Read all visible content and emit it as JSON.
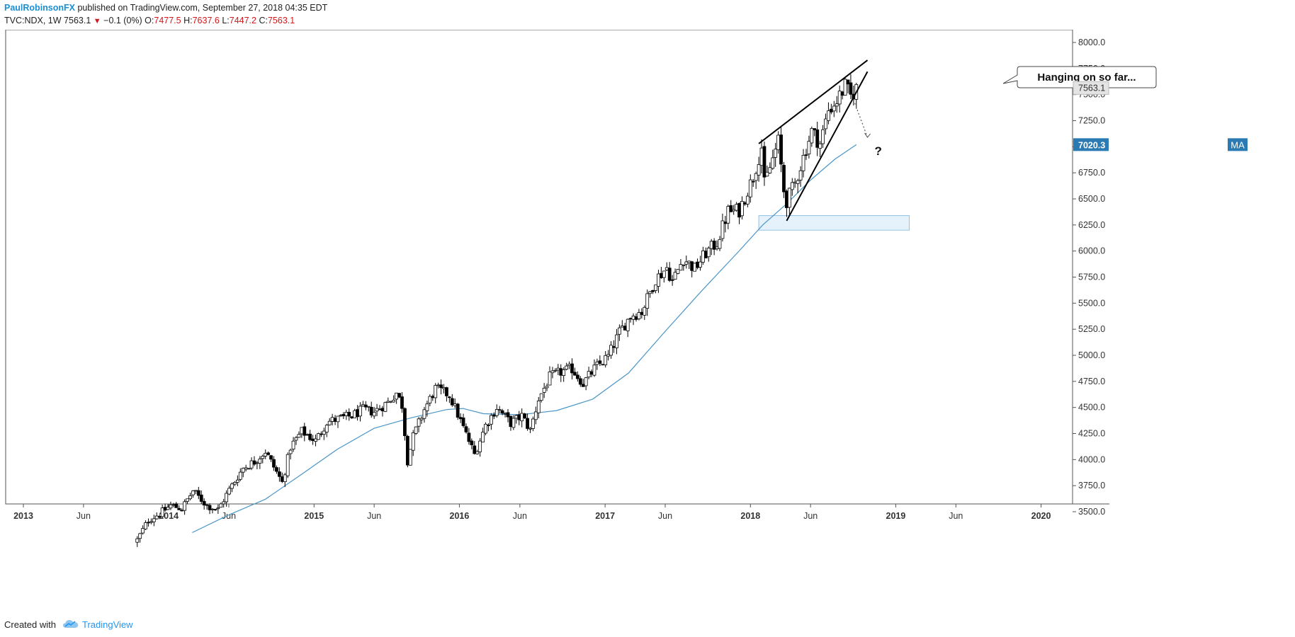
{
  "header": {
    "author": "PaulRobinsonFX",
    "published": "published on TradingView.com, September 27, 2018 04:35 EDT",
    "symbol": "TVC:NDX, 1W",
    "last": "7563.1",
    "change": "−0.1 (0%)",
    "o_label": "O:",
    "o": "7477.5",
    "h_label": "H:",
    "h": "7637.6",
    "l_label": "L:",
    "l": "7447.2",
    "c_label": "C:",
    "c": "7563.1"
  },
  "footer": {
    "created_with": "Created with",
    "brand": "TradingView",
    "logo_icon": "tradingview-cloud-icon"
  },
  "colors": {
    "background": "#ffffff",
    "candle_border": "#000000",
    "bull_fill": "#ffffff",
    "bear_fill": "#000000",
    "ma_line": "#4a96c8",
    "ma_badge": "#2a7ab4",
    "zone_fill": "#e6f2fb",
    "zone_stroke": "#8fc3e6",
    "axis_text": "#333333",
    "price_badge": "#e4e4e4"
  },
  "chart_data": {
    "type": "candlestick",
    "symbol": "TVC:NDX",
    "interval": "1W",
    "x_range": [
      "2013-01-01",
      "2020-06-01"
    ],
    "ylim": [
      3300,
      8100
    ],
    "y_ticks": [
      3500,
      3750,
      4000,
      4250,
      4500,
      4750,
      5000,
      5250,
      5500,
      5750,
      6000,
      6250,
      6500,
      6750,
      7000,
      7250,
      7500,
      7750,
      8000
    ],
    "y_tick_labels": [
      "3500.0",
      "3750.0",
      "4000.0",
      "4250.0",
      "4500.0",
      "4750.0",
      "5000.0",
      "5250.0",
      "5500.0",
      "5750.0",
      "6000.0",
      "6250.0",
      "6500.0",
      "6750.0",
      "7000.0",
      "7250.0",
      "7500.0",
      "7750.0",
      "8000.0"
    ],
    "x_ticks": [
      {
        "date": "2013-01-01",
        "label": "2013",
        "bold": true
      },
      {
        "date": "2013-06-01",
        "label": "Jun",
        "bold": false
      },
      {
        "date": "2014-01-01",
        "label": "2014",
        "bold": true
      },
      {
        "date": "2014-06-01",
        "label": "Jun",
        "bold": false
      },
      {
        "date": "2015-01-01",
        "label": "2015",
        "bold": true
      },
      {
        "date": "2015-06-01",
        "label": "Jun",
        "bold": false
      },
      {
        "date": "2016-01-01",
        "label": "2016",
        "bold": true
      },
      {
        "date": "2016-06-01",
        "label": "Jun",
        "bold": false
      },
      {
        "date": "2017-01-01",
        "label": "2017",
        "bold": true
      },
      {
        "date": "2017-06-01",
        "label": "Jun",
        "bold": false
      },
      {
        "date": "2018-01-01",
        "label": "2018",
        "bold": true
      },
      {
        "date": "2018-06-01",
        "label": "Jun",
        "bold": false
      },
      {
        "date": "2019-01-01",
        "label": "2019",
        "bold": true
      },
      {
        "date": "2019-06-01",
        "label": "Jun",
        "bold": false
      },
      {
        "date": "2020-01-01",
        "label": "2020",
        "bold": true
      }
    ],
    "price_path": [
      [
        "2013-10-14",
        3230
      ],
      [
        "2013-11-11",
        3420
      ],
      [
        "2013-12-09",
        3480
      ],
      [
        "2014-01-06",
        3560
      ],
      [
        "2014-02-03",
        3530
      ],
      [
        "2014-03-03",
        3700
      ],
      [
        "2014-04-07",
        3560
      ],
      [
        "2014-05-05",
        3520
      ],
      [
        "2014-06-02",
        3710
      ],
      [
        "2014-07-07",
        3920
      ],
      [
        "2014-08-04",
        3980
      ],
      [
        "2014-09-01",
        4080
      ],
      [
        "2014-10-13",
        3780
      ],
      [
        "2014-11-03",
        4120
      ],
      [
        "2014-12-01",
        4270
      ],
      [
        "2015-01-05",
        4180
      ],
      [
        "2015-02-02",
        4360
      ],
      [
        "2015-03-02",
        4390
      ],
      [
        "2015-04-06",
        4420
      ],
      [
        "2015-05-04",
        4480
      ],
      [
        "2015-06-01",
        4460
      ],
      [
        "2015-07-06",
        4550
      ],
      [
        "2015-07-27",
        4640
      ],
      [
        "2015-08-10",
        4520
      ],
      [
        "2015-08-24",
        3990
      ],
      [
        "2015-09-07",
        4220
      ],
      [
        "2015-10-05",
        4480
      ],
      [
        "2015-11-02",
        4680
      ],
      [
        "2015-12-07",
        4620
      ],
      [
        "2016-01-04",
        4370
      ],
      [
        "2016-02-08",
        4050
      ],
      [
        "2016-03-07",
        4330
      ],
      [
        "2016-04-04",
        4500
      ],
      [
        "2016-05-09",
        4350
      ],
      [
        "2016-06-06",
        4420
      ],
      [
        "2016-06-27",
        4280
      ],
      [
        "2016-07-18",
        4580
      ],
      [
        "2016-08-15",
        4790
      ],
      [
        "2016-09-12",
        4840
      ],
      [
        "2016-10-10",
        4870
      ],
      [
        "2016-11-07",
        4730
      ],
      [
        "2016-12-05",
        4870
      ],
      [
        "2017-01-09",
        4990
      ],
      [
        "2017-02-06",
        5220
      ],
      [
        "2017-03-06",
        5380
      ],
      [
        "2017-04-03",
        5420
      ],
      [
        "2017-05-08",
        5730
      ],
      [
        "2017-06-05",
        5840
      ],
      [
        "2017-06-19",
        5710
      ],
      [
        "2017-07-17",
        5930
      ],
      [
        "2017-08-14",
        5830
      ],
      [
        "2017-09-11",
        5980
      ],
      [
        "2017-10-09",
        6080
      ],
      [
        "2017-11-06",
        6380
      ],
      [
        "2017-12-04",
        6390
      ],
      [
        "2018-01-08",
        6710
      ],
      [
        "2018-01-29",
        7000
      ],
      [
        "2018-02-05",
        6640
      ],
      [
        "2018-02-19",
        6800
      ],
      [
        "2018-03-12",
        7050
      ],
      [
        "2018-03-26",
        6580
      ],
      [
        "2018-04-02",
        6480
      ],
      [
        "2018-04-23",
        6650
      ],
      [
        "2018-05-14",
        6900
      ],
      [
        "2018-06-04",
        7150
      ],
      [
        "2018-06-25",
        7030
      ],
      [
        "2018-07-16",
        7350
      ],
      [
        "2018-08-06",
        7440
      ],
      [
        "2018-08-27",
        7580
      ],
      [
        "2018-09-10",
        7480
      ],
      [
        "2018-09-24",
        7563
      ]
    ],
    "ma_path": [
      [
        "2014-03-01",
        3300
      ],
      [
        "2014-06-01",
        3470
      ],
      [
        "2014-09-01",
        3620
      ],
      [
        "2014-12-01",
        3860
      ],
      [
        "2015-03-01",
        4100
      ],
      [
        "2015-06-01",
        4300
      ],
      [
        "2015-09-01",
        4400
      ],
      [
        "2015-12-01",
        4480
      ],
      [
        "2016-01-10",
        4490
      ],
      [
        "2016-03-01",
        4440
      ],
      [
        "2016-06-01",
        4430
      ],
      [
        "2016-09-01",
        4470
      ],
      [
        "2016-12-01",
        4580
      ],
      [
        "2017-03-01",
        4830
      ],
      [
        "2017-06-01",
        5230
      ],
      [
        "2017-09-01",
        5620
      ],
      [
        "2017-12-01",
        5990
      ],
      [
        "2018-02-01",
        6250
      ],
      [
        "2018-04-01",
        6450
      ],
      [
        "2018-06-01",
        6680
      ],
      [
        "2018-08-01",
        6880
      ],
      [
        "2018-09-24",
        7020
      ]
    ],
    "last_price": 7563.1,
    "last_price_label": "7563.1",
    "ma_label": "MA",
    "ma_value": 7020.3,
    "ma_value_label": "7020.3",
    "annotations": {
      "callout_text": "Hanging on so far...",
      "question_mark": "?",
      "wedge_upper": [
        [
          "2018-01-22",
          7030
        ],
        [
          "2018-10-22",
          7830
        ]
      ],
      "wedge_lower": [
        [
          "2018-04-02",
          6290
        ],
        [
          "2018-10-22",
          7720
        ]
      ],
      "projection_arrow": [
        [
          "2018-09-17",
          7450
        ],
        [
          "2018-10-22",
          7090
        ]
      ],
      "support_zone": {
        "x0": "2018-01-22",
        "x1": "2019-02-04",
        "y0": 6200,
        "y1": 6340
      }
    }
  }
}
